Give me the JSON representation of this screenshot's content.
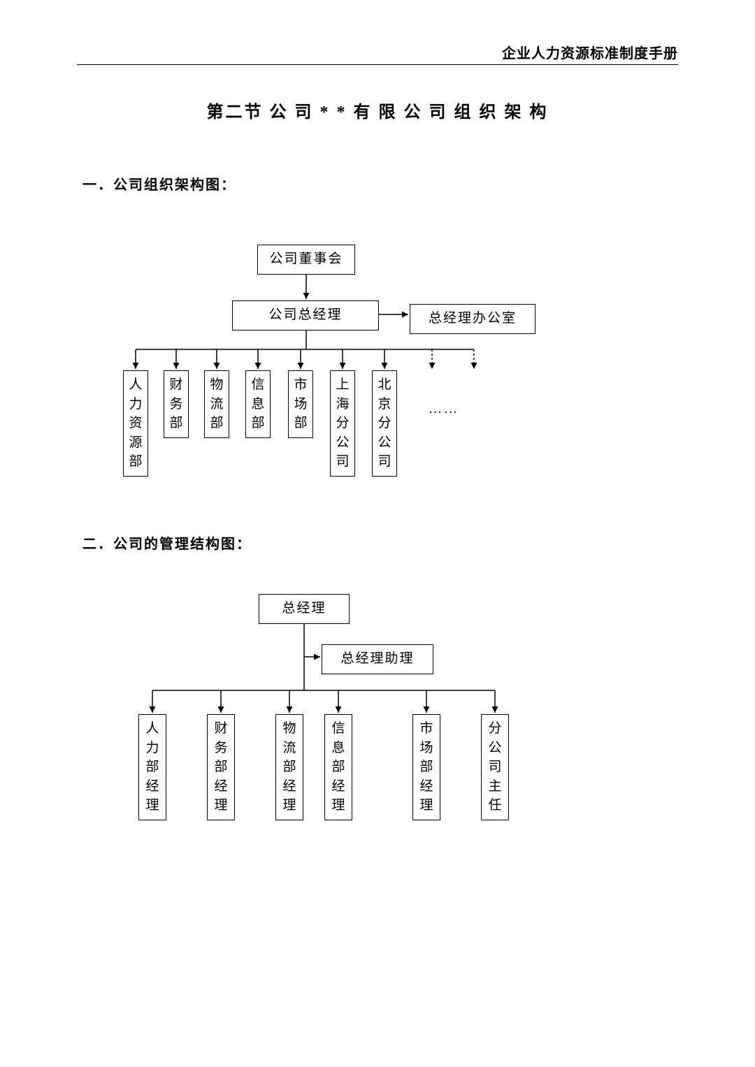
{
  "header": {
    "right_title": "企业人力资源标准制度手册"
  },
  "title": "第二节  公 司 * * 有 限 公 司 组 织 架 构",
  "section1": {
    "heading": "一．公司组织架构图：",
    "chart": {
      "type": "tree",
      "line_color": "#000000",
      "background_color": "#ffffff",
      "box_border_color": "#000000",
      "font_size": 19,
      "nodes": {
        "top": {
          "label": "公司董事会"
        },
        "mid": {
          "label": "公司总经理"
        },
        "side": {
          "label": "总经理办公室"
        },
        "leaves": [
          {
            "label": "人力资源部"
          },
          {
            "label": "财务部"
          },
          {
            "label": "物流部"
          },
          {
            "label": "信息部"
          },
          {
            "label": "市场部"
          },
          {
            "label": "上海分公司"
          },
          {
            "label": "北京分公司"
          }
        ],
        "ellipsis": "……"
      }
    }
  },
  "section2": {
    "heading": "二．公司的管理结构图：",
    "chart": {
      "type": "tree",
      "line_color": "#000000",
      "background_color": "#ffffff",
      "box_border_color": "#000000",
      "font_size": 19,
      "nodes": {
        "top": {
          "label": "总经理"
        },
        "side": {
          "label": "总经理助理"
        },
        "leaves": [
          {
            "label": "人力部经理"
          },
          {
            "label": "财务部经理"
          },
          {
            "label": "物流部经理"
          },
          {
            "label": "信息部经理"
          },
          {
            "label": "市场部经理"
          },
          {
            "label": "分公司主任"
          }
        ]
      }
    }
  }
}
